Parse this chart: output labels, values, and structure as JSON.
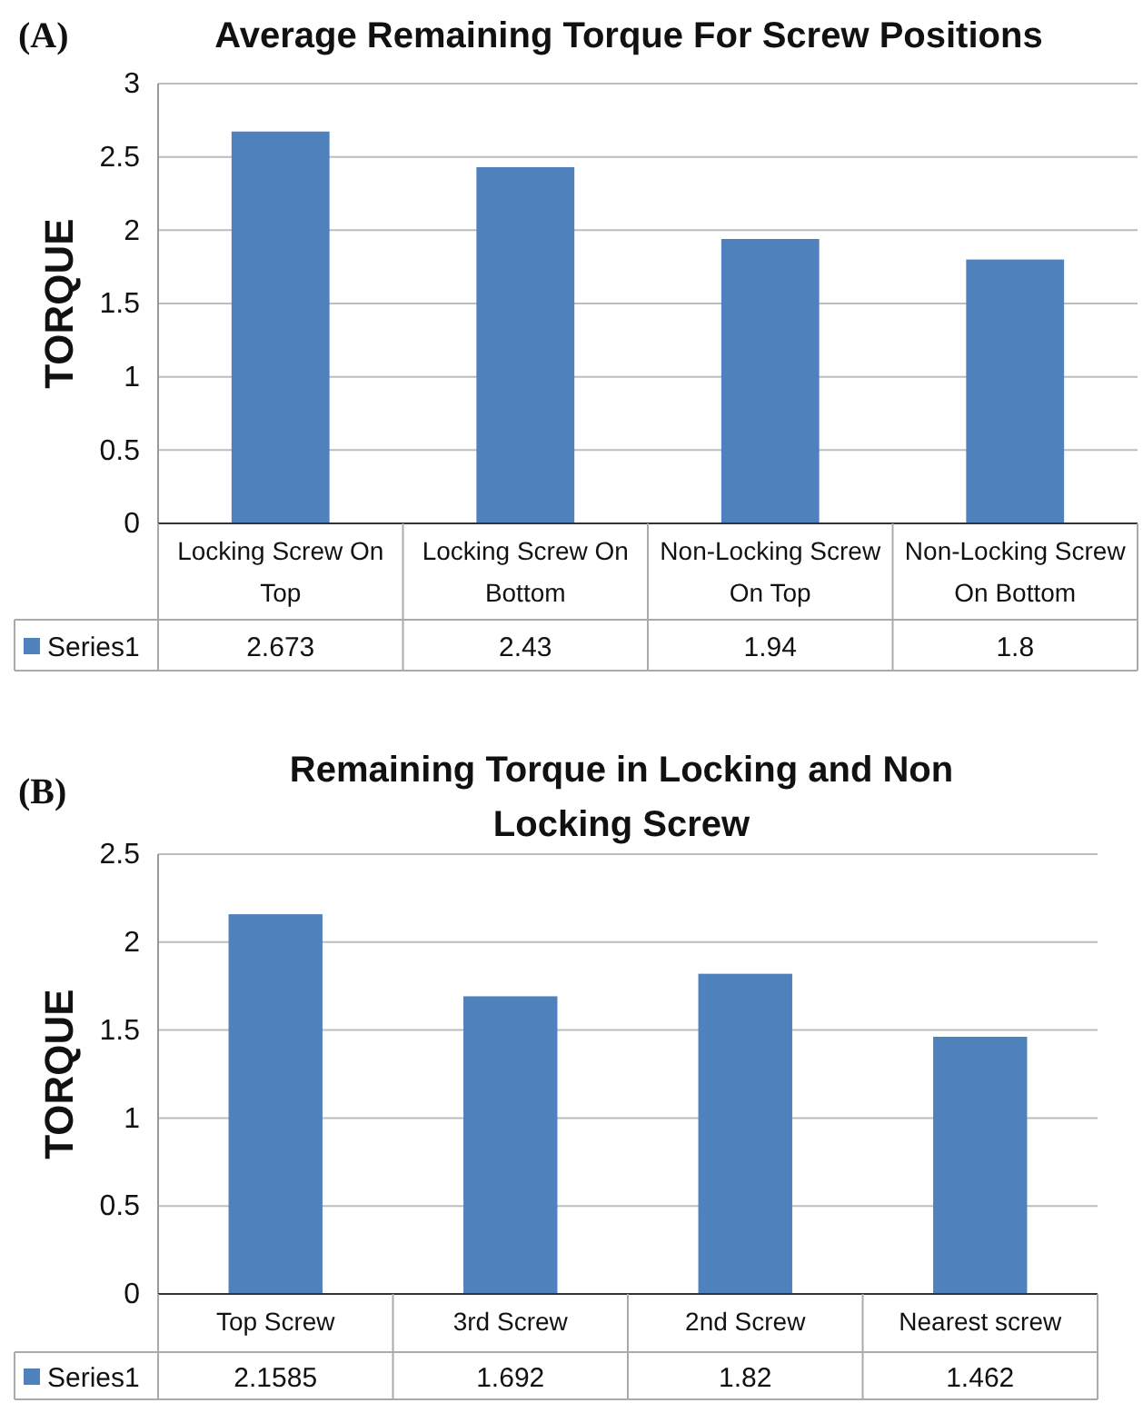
{
  "chart_data": [
    {
      "type": "bar",
      "title": "Average Remaining Torque For Screw Positions",
      "ylabel": "TORQUE",
      "annotations": [
        "(A)"
      ],
      "categories": [
        "Locking Screw On Top",
        "Locking Screw On Bottom",
        "Non-Locking Screw On Top",
        "Non-Locking Screw On Bottom"
      ],
      "series": [
        {
          "name": "Series1",
          "color": "#4f81bd",
          "values": [
            2.673,
            2.43,
            1.94,
            1.8
          ]
        }
      ],
      "ylim": [
        0,
        3
      ],
      "yticks": [
        0,
        0.5,
        1,
        1.5,
        2,
        2.5,
        3
      ],
      "grid": "y",
      "legend": "bottom",
      "data_labels": true
    },
    {
      "type": "bar",
      "title": "Remaining Torque in Locking and Non Locking Screw",
      "ylabel": "TORQUE",
      "annotations": [
        "(B)"
      ],
      "categories": [
        "Top Screw",
        "3rd Screw",
        "2nd Screw",
        "Nearest screw"
      ],
      "series": [
        {
          "name": "Series1",
          "color": "#4f81bd",
          "values": [
            2.1585,
            1.692,
            1.82,
            1.462
          ]
        }
      ],
      "ylim": [
        0,
        2.5
      ],
      "yticks": [
        0,
        0.5,
        1,
        1.5,
        2,
        2.5
      ],
      "grid": "y",
      "legend": "bottom",
      "data_labels": true
    }
  ]
}
